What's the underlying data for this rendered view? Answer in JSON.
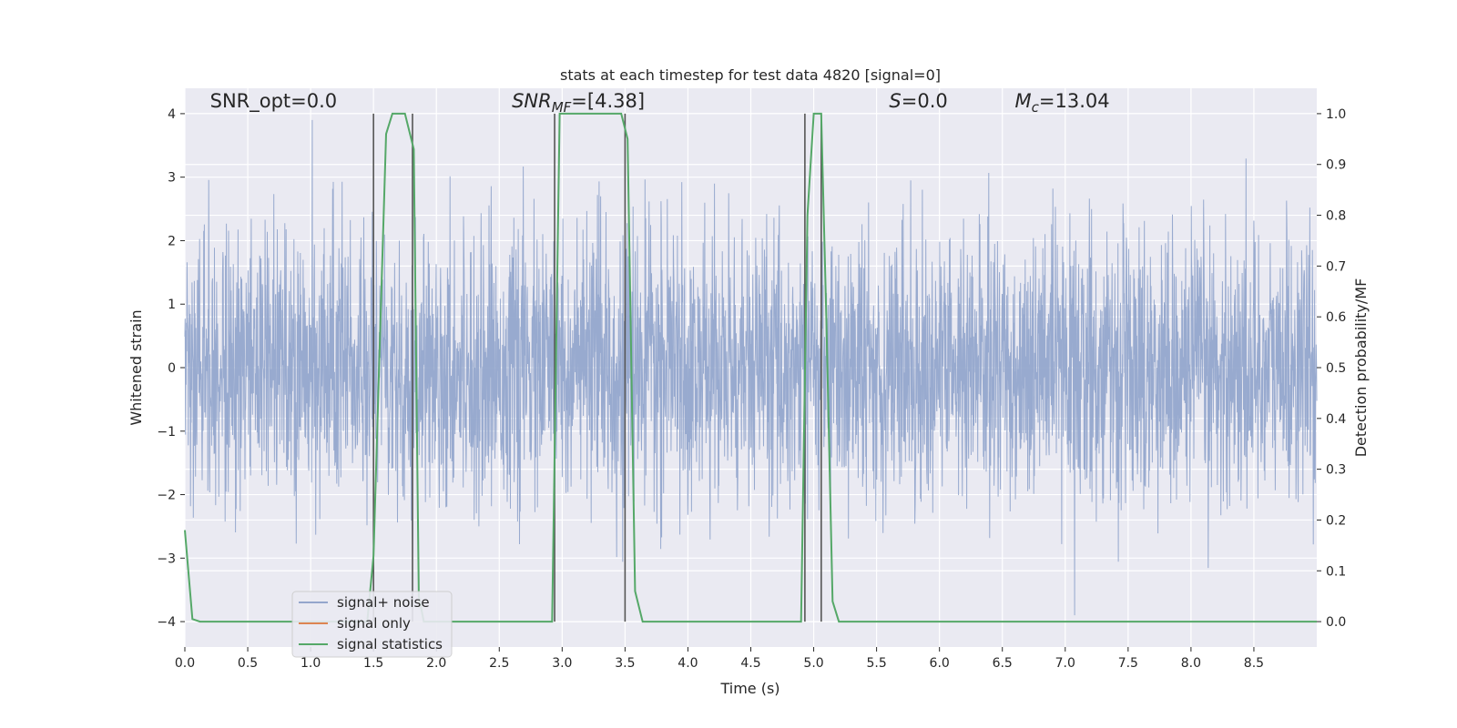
{
  "chart_data": {
    "type": "line",
    "title": "stats at each timestep for test data 4820 [signal=0]",
    "xlabel": "Time (s)",
    "ylabel": "Whitened strain",
    "y2label": "Detection probability/MF",
    "xlim": [
      0,
      9.0
    ],
    "ylim": [
      -4.4,
      4.4
    ],
    "y2lim": [
      -0.05,
      1.05
    ],
    "xticks": [
      0.0,
      0.5,
      1.0,
      1.5,
      2.0,
      2.5,
      3.0,
      3.5,
      4.0,
      4.5,
      5.0,
      5.5,
      6.0,
      6.5,
      7.0,
      7.5,
      8.0,
      8.5
    ],
    "yticks": [
      -4,
      -3,
      -2,
      -1,
      0,
      1,
      2,
      3,
      4
    ],
    "y2ticks": [
      0.0,
      0.1,
      0.2,
      0.3,
      0.4,
      0.5,
      0.6,
      0.7,
      0.8,
      0.9,
      1.0
    ],
    "grid": true,
    "legend_position": "lower-left",
    "annotations": [
      {
        "text": "SNR_opt=0.0",
        "x": 0.2,
        "y": 4.1
      },
      {
        "text": "SNR_MF=[4.38]",
        "x": 2.6,
        "y": 4.1
      },
      {
        "text": "S=0.0",
        "x": 5.6,
        "y": 4.1
      },
      {
        "text": "M_c=13.04",
        "x": 6.6,
        "y": 4.1
      }
    ],
    "series": [
      {
        "name": "signal+ noise",
        "color": "#94a6cc",
        "kind": "noise",
        "description_range": [
          -3.9,
          3.9
        ]
      },
      {
        "name": "signal only",
        "color": "#dd8452",
        "x": [],
        "y": []
      },
      {
        "name": "signal statistics",
        "color": "#55a868",
        "axis": "right",
        "x": [
          0.0,
          0.06,
          0.12,
          1.45,
          1.5,
          1.55,
          1.6,
          1.65,
          1.75,
          1.82,
          1.86,
          1.9,
          2.5,
          2.92,
          2.98,
          3.03,
          3.47,
          3.52,
          3.58,
          3.64,
          4.9,
          4.95,
          5.0,
          5.06,
          5.1,
          5.15,
          5.2,
          5.25,
          9.0
        ],
        "y": [
          0.18,
          0.005,
          0.0,
          0.0,
          0.13,
          0.55,
          0.96,
          1.0,
          1.0,
          0.93,
          0.05,
          0.0,
          0.0,
          0.0,
          1.0,
          1.0,
          1.0,
          0.95,
          0.06,
          0.0,
          0.0,
          0.8,
          1.0,
          1.0,
          0.6,
          0.04,
          0.0,
          0.0,
          0.0
        ]
      }
    ],
    "vlines": [
      1.5,
      1.81,
      2.94,
      3.5,
      4.93,
      5.06
    ]
  }
}
